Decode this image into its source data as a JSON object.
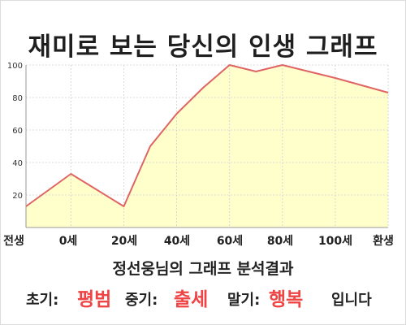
{
  "title": "재미로 보는 당신의 인생 그래프",
  "chart_data": {
    "type": "area",
    "x_labels": [
      "전생",
      "0세",
      "20세",
      "40세",
      "60세",
      "80세",
      "100세",
      "환생"
    ],
    "points": [
      {
        "x": -17,
        "y": 13
      },
      {
        "x": 0,
        "y": 33
      },
      {
        "x": 20,
        "y": 13
      },
      {
        "x": 30,
        "y": 50
      },
      {
        "x": 40,
        "y": 70
      },
      {
        "x": 50,
        "y": 86
      },
      {
        "x": 60,
        "y": 100
      },
      {
        "x": 70,
        "y": 96
      },
      {
        "x": 80,
        "y": 100
      },
      {
        "x": 100,
        "y": 92
      },
      {
        "x": 120,
        "y": 83
      }
    ],
    "y_ticks": [
      20,
      40,
      60,
      80,
      100
    ],
    "ylim": [
      0,
      100
    ],
    "xlim": [
      -17,
      120
    ],
    "grid": true,
    "colors": {
      "fill": "#ffffcc",
      "line": "#e06464",
      "grid": "#d8d8d8",
      "axis": "#9a9a9a"
    }
  },
  "summary": "정선웅님의 그래프 분석결과",
  "result": {
    "early_label": "초기:",
    "early_value": "평범",
    "middle_label": "중기:",
    "middle_value": "출세",
    "late_label": "말기:",
    "late_value": "행복",
    "ending": "입니다"
  }
}
